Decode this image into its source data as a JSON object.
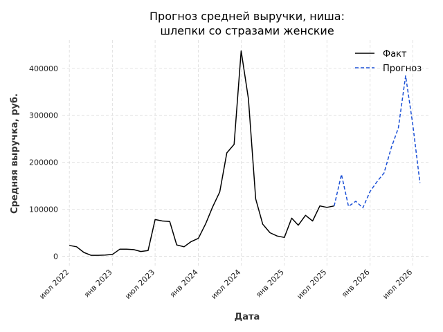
{
  "chart_data": {
    "type": "line",
    "title_lines": [
      "Прогноз средней выручки, ниша:",
      "шлепки со стразами женские"
    ],
    "xlabel": "Дата",
    "ylabel": "Средняя выручка, руб.",
    "x_tick_labels": [
      {
        "date": "2022-07-01",
        "label": "июл 2022"
      },
      {
        "date": "2023-01-01",
        "label": "янв 2023"
      },
      {
        "date": "2023-07-01",
        "label": "июл 2023"
      },
      {
        "date": "2024-01-01",
        "label": "янв 2024"
      },
      {
        "date": "2024-07-01",
        "label": "июл 2024"
      },
      {
        "date": "2025-01-01",
        "label": "янв 2025"
      },
      {
        "date": "2025-07-01",
        "label": "июл 2025"
      },
      {
        "date": "2026-01-01",
        "label": "янв 2026"
      },
      {
        "date": "2026-07-01",
        "label": "июл 2026"
      }
    ],
    "x_range": [
      "2022-06-01",
      "2026-09-15"
    ],
    "y_ticks": [
      0,
      100000,
      200000,
      300000,
      400000
    ],
    "y_tick_labels": [
      "0",
      "100000",
      "200000",
      "300000",
      "400000"
    ],
    "ylim": [
      -20000,
      460000
    ],
    "grid": true,
    "legend_position": "top-right",
    "series": [
      {
        "name": "Факт",
        "color": "#000000",
        "style": "solid",
        "points": [
          {
            "x": "2022-07-01",
            "y": 23000
          },
          {
            "x": "2022-08-01",
            "y": 20000
          },
          {
            "x": "2022-09-01",
            "y": 8000
          },
          {
            "x": "2022-10-01",
            "y": 2000
          },
          {
            "x": "2022-11-01",
            "y": 2000
          },
          {
            "x": "2022-12-01",
            "y": 2500
          },
          {
            "x": "2023-01-01",
            "y": 4000
          },
          {
            "x": "2023-02-01",
            "y": 15000
          },
          {
            "x": "2023-03-01",
            "y": 15000
          },
          {
            "x": "2023-04-01",
            "y": 14000
          },
          {
            "x": "2023-05-01",
            "y": 10000
          },
          {
            "x": "2023-06-01",
            "y": 12000
          },
          {
            "x": "2023-07-01",
            "y": 78000
          },
          {
            "x": "2023-08-01",
            "y": 75000
          },
          {
            "x": "2023-09-01",
            "y": 74000
          },
          {
            "x": "2023-10-01",
            "y": 24000
          },
          {
            "x": "2023-11-01",
            "y": 20000
          },
          {
            "x": "2023-12-01",
            "y": 31000
          },
          {
            "x": "2024-01-01",
            "y": 38000
          },
          {
            "x": "2024-02-01",
            "y": 69000
          },
          {
            "x": "2024-03-01",
            "y": 104000
          },
          {
            "x": "2024-04-01",
            "y": 137000
          },
          {
            "x": "2024-05-01",
            "y": 220000
          },
          {
            "x": "2024-06-01",
            "y": 238000
          },
          {
            "x": "2024-07-01",
            "y": 437000
          },
          {
            "x": "2024-08-01",
            "y": 335000
          },
          {
            "x": "2024-09-01",
            "y": 122000
          },
          {
            "x": "2024-10-01",
            "y": 68000
          },
          {
            "x": "2024-11-01",
            "y": 50000
          },
          {
            "x": "2024-12-01",
            "y": 43000
          },
          {
            "x": "2025-01-01",
            "y": 40000
          },
          {
            "x": "2025-02-01",
            "y": 81000
          },
          {
            "x": "2025-03-01",
            "y": 66000
          },
          {
            "x": "2025-04-01",
            "y": 87000
          },
          {
            "x": "2025-05-01",
            "y": 75000
          },
          {
            "x": "2025-06-01",
            "y": 107000
          },
          {
            "x": "2025-07-01",
            "y": 104000
          },
          {
            "x": "2025-08-01",
            "y": 107000
          }
        ]
      },
      {
        "name": "Прогноз",
        "color": "#1a4fd6",
        "style": "dashed",
        "points": [
          {
            "x": "2025-08-01",
            "y": 107000
          },
          {
            "x": "2025-09-01",
            "y": 174000
          },
          {
            "x": "2025-10-01",
            "y": 106000
          },
          {
            "x": "2025-11-01",
            "y": 117000
          },
          {
            "x": "2025-12-01",
            "y": 103000
          },
          {
            "x": "2026-01-01",
            "y": 138000
          },
          {
            "x": "2026-02-01",
            "y": 160000
          },
          {
            "x": "2026-03-01",
            "y": 177000
          },
          {
            "x": "2026-04-01",
            "y": 231000
          },
          {
            "x": "2026-05-01",
            "y": 273000
          },
          {
            "x": "2026-06-01",
            "y": 384000
          },
          {
            "x": "2026-07-01",
            "y": 282000
          },
          {
            "x": "2026-08-01",
            "y": 156000
          }
        ]
      }
    ]
  }
}
